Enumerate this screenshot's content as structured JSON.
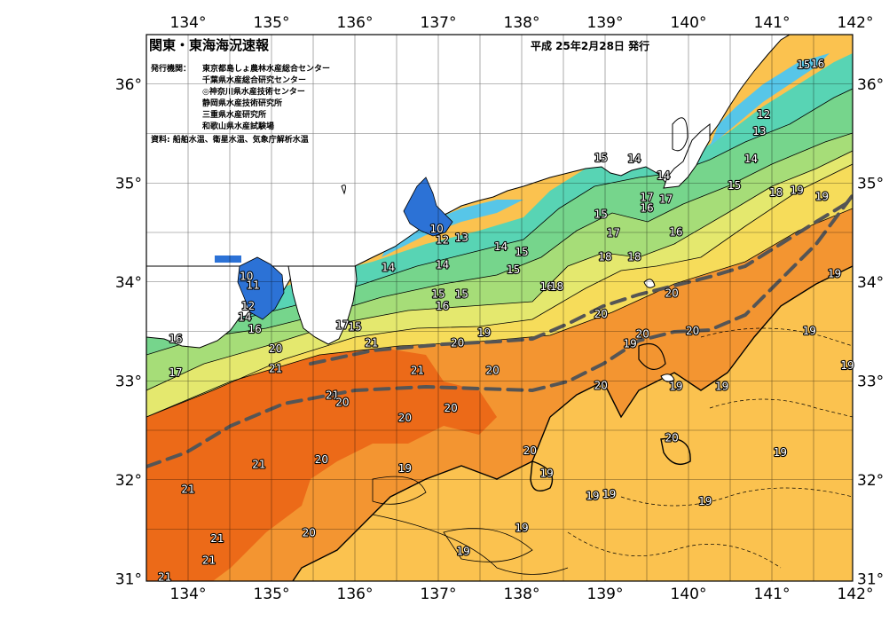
{
  "title": "関東・東海海況速報",
  "issued": "平成 25年2月28日 発行",
  "publisher_label": "発行機関：",
  "publishers": [
    "東京都島しょ農林水産総合センター",
    "千葉県水産総合研究センター",
    "◎神奈川県水産技術センター",
    "静岡県水産技術研究所",
    "三重県水産研究所",
    "和歌山県水産試験場"
  ],
  "source": "資料: 船舶水温、衛星水温、気象庁解析水温",
  "lon_labels": [
    "134°",
    "135°",
    "136°",
    "137°",
    "138°",
    "139°",
    "140°",
    "141°",
    "142°"
  ],
  "lat_labels": [
    "36°",
    "35°",
    "34°",
    "33°",
    "32°",
    "31°"
  ],
  "isotherm_labels": [
    {
      "t": "16",
      "lon": 141.55,
      "lat": 36.2
    },
    {
      "t": "15",
      "lon": 141.38,
      "lat": 36.19
    },
    {
      "t": "12",
      "lon": 140.9,
      "lat": 35.69
    },
    {
      "t": "13",
      "lon": 140.85,
      "lat": 35.52
    },
    {
      "t": "14",
      "lon": 140.75,
      "lat": 35.24
    },
    {
      "t": "15",
      "lon": 140.55,
      "lat": 34.97
    },
    {
      "t": "18",
      "lon": 141.05,
      "lat": 34.9
    },
    {
      "t": "19",
      "lon": 141.3,
      "lat": 34.92
    },
    {
      "t": "19",
      "lon": 141.6,
      "lat": 34.86
    },
    {
      "t": "15",
      "lon": 138.95,
      "lat": 35.25
    },
    {
      "t": "14",
      "lon": 139.35,
      "lat": 35.24
    },
    {
      "t": "14",
      "lon": 139.7,
      "lat": 35.07
    },
    {
      "t": "17",
      "lon": 139.5,
      "lat": 34.85
    },
    {
      "t": "17",
      "lon": 139.73,
      "lat": 34.83
    },
    {
      "t": "16",
      "lon": 139.5,
      "lat": 34.74
    },
    {
      "t": "16",
      "lon": 139.85,
      "lat": 34.5
    },
    {
      "t": "15",
      "lon": 138.95,
      "lat": 34.68
    },
    {
      "t": "17",
      "lon": 139.1,
      "lat": 34.49
    },
    {
      "t": "18",
      "lon": 139.0,
      "lat": 34.25
    },
    {
      "t": "18",
      "lon": 139.35,
      "lat": 34.25
    },
    {
      "t": "16",
      "lon": 138.3,
      "lat": 33.95
    },
    {
      "t": "18",
      "lon": 138.42,
      "lat": 33.95
    },
    {
      "t": "20",
      "lon": 139.8,
      "lat": 33.88
    },
    {
      "t": "20",
      "lon": 138.95,
      "lat": 33.67
    },
    {
      "t": "10",
      "lon": 136.98,
      "lat": 34.53
    },
    {
      "t": "12",
      "lon": 137.05,
      "lat": 34.42
    },
    {
      "t": "13",
      "lon": 137.28,
      "lat": 34.44
    },
    {
      "t": "14",
      "lon": 137.05,
      "lat": 34.17
    },
    {
      "t": "14",
      "lon": 137.75,
      "lat": 34.35
    },
    {
      "t": "15",
      "lon": 138.0,
      "lat": 34.3
    },
    {
      "t": "15",
      "lon": 137.9,
      "lat": 34.12
    },
    {
      "t": "15",
      "lon": 137.0,
      "lat": 33.87
    },
    {
      "t": "15",
      "lon": 137.28,
      "lat": 33.87
    },
    {
      "t": "16",
      "lon": 137.05,
      "lat": 33.75
    },
    {
      "t": "14",
      "lon": 136.4,
      "lat": 34.14
    },
    {
      "t": "10",
      "lon": 134.7,
      "lat": 34.05
    },
    {
      "t": "11",
      "lon": 134.78,
      "lat": 33.96
    },
    {
      "t": "12",
      "lon": 134.72,
      "lat": 33.75
    },
    {
      "t": "14",
      "lon": 134.68,
      "lat": 33.64
    },
    {
      "t": "16",
      "lon": 134.8,
      "lat": 33.52
    },
    {
      "t": "17",
      "lon": 135.85,
      "lat": 33.56
    },
    {
      "t": "15",
      "lon": 136.0,
      "lat": 33.54
    },
    {
      "t": "16",
      "lon": 133.85,
      "lat": 33.42
    },
    {
      "t": "17",
      "lon": 133.85,
      "lat": 33.08
    },
    {
      "t": "20",
      "lon": 135.05,
      "lat": 33.32
    },
    {
      "t": "21",
      "lon": 135.05,
      "lat": 33.12
    },
    {
      "t": "21",
      "lon": 136.2,
      "lat": 33.38
    },
    {
      "t": "20",
      "lon": 137.23,
      "lat": 33.38
    },
    {
      "t": "19",
      "lon": 137.55,
      "lat": 33.48
    },
    {
      "t": "21",
      "lon": 136.75,
      "lat": 33.1
    },
    {
      "t": "20",
      "lon": 137.65,
      "lat": 33.1
    },
    {
      "t": "21",
      "lon": 135.73,
      "lat": 32.85
    },
    {
      "t": "20",
      "lon": 135.85,
      "lat": 32.78
    },
    {
      "t": "20",
      "lon": 137.15,
      "lat": 32.72
    },
    {
      "t": "20",
      "lon": 136.6,
      "lat": 32.62
    },
    {
      "t": "20",
      "lon": 135.6,
      "lat": 32.2
    },
    {
      "t": "19",
      "lon": 136.6,
      "lat": 32.11
    },
    {
      "t": "21",
      "lon": 134.85,
      "lat": 32.15
    },
    {
      "t": "21",
      "lon": 134.0,
      "lat": 31.9
    },
    {
      "t": "21",
      "lon": 134.35,
      "lat": 31.4
    },
    {
      "t": "21",
      "lon": 134.25,
      "lat": 31.18
    },
    {
      "t": "21",
      "lon": 133.72,
      "lat": 31.01
    },
    {
      "t": "20",
      "lon": 135.45,
      "lat": 31.46
    },
    {
      "t": "19",
      "lon": 137.3,
      "lat": 31.27
    },
    {
      "t": "19",
      "lon": 138.0,
      "lat": 31.51
    },
    {
      "t": "20",
      "lon": 138.1,
      "lat": 32.29
    },
    {
      "t": "19",
      "lon": 138.3,
      "lat": 32.06
    },
    {
      "t": "19",
      "lon": 138.85,
      "lat": 31.83
    },
    {
      "t": "19",
      "lon": 139.05,
      "lat": 31.85
    },
    {
      "t": "20",
      "lon": 138.95,
      "lat": 32.95
    },
    {
      "t": "19",
      "lon": 139.3,
      "lat": 33.37
    },
    {
      "t": "20",
      "lon": 139.45,
      "lat": 33.47
    },
    {
      "t": "20",
      "lon": 140.05,
      "lat": 33.5
    },
    {
      "t": "19",
      "lon": 139.85,
      "lat": 32.94
    },
    {
      "t": "20",
      "lon": 139.8,
      "lat": 32.42
    },
    {
      "t": "19",
      "lon": 140.2,
      "lat": 31.78
    },
    {
      "t": "19",
      "lon": 140.4,
      "lat": 32.94
    },
    {
      "t": "19",
      "lon": 141.1,
      "lat": 32.27
    },
    {
      "t": "19",
      "lon": 141.45,
      "lat": 33.5
    },
    {
      "t": "19",
      "lon": 141.75,
      "lat": 34.08
    },
    {
      "t": "19",
      "lon": 142.25,
      "lat": 33.15
    }
  ],
  "colors": {
    "warm_21": "#ec6a18",
    "warm_20": "#f39531",
    "warm_19": "#fbc24f",
    "mid_18": "#f6dc5a",
    "mid_17": "#e4e86e",
    "mid_16": "#a6dd78",
    "cool_15": "#76d58c",
    "cool_14": "#58d4b4",
    "cold_12": "#57c6e8",
    "cold_10": "#2c72d6",
    "land": "#ffffff",
    "kuroshio_axis": "#555555"
  }
}
